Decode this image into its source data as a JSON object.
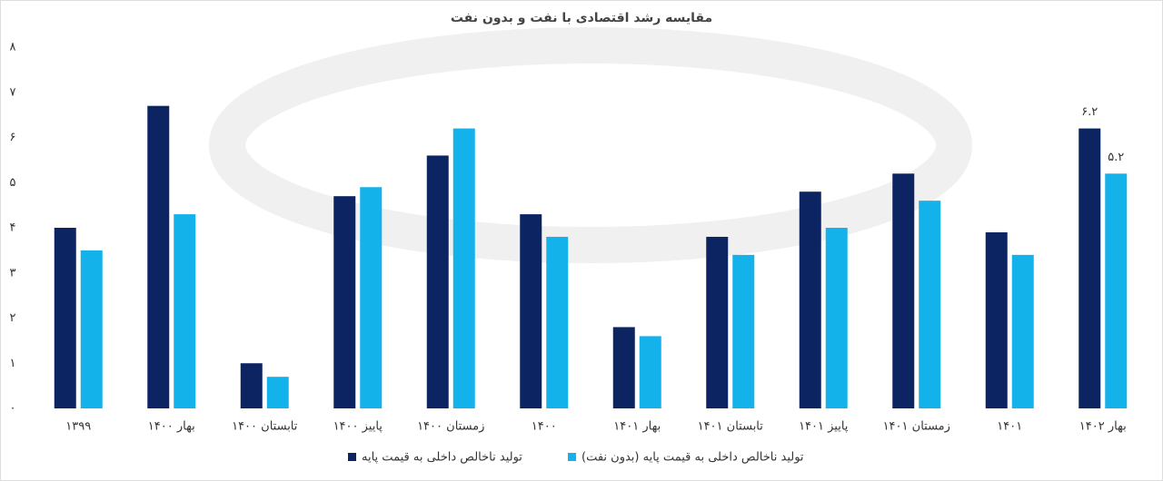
{
  "chart_data": {
    "type": "bar",
    "title": "مقایسه رشد اقتصادی با نفت و بدون نفت",
    "categories": [
      "۱۳۹۹",
      "بهار ۱۴۰۰",
      "تابستان ۱۴۰۰",
      "پاییز ۱۴۰۰",
      "زمستان ۱۴۰۰",
      "۱۴۰۰",
      "بهار ۱۴۰۱",
      "تابستان ۱۴۰۱",
      "پاییز ۱۴۰۱",
      "زمستان ۱۴۰۱",
      "۱۴۰۱",
      "بهار ۱۴۰۲"
    ],
    "series": [
      {
        "name": "تولید ناخالص داخلی به قیمت پایه",
        "color": "#0d2463",
        "values": [
          4.0,
          6.7,
          1.0,
          4.7,
          5.6,
          4.3,
          1.8,
          3.8,
          4.8,
          5.2,
          3.9,
          6.2
        ],
        "value_labels": [
          null,
          null,
          null,
          null,
          null,
          null,
          null,
          null,
          null,
          null,
          null,
          "۶.۲"
        ]
      },
      {
        "name": "تولید ناخالص داخلی به قیمت پایه (بدون نفت)",
        "color": "#14b2ea",
        "values": [
          3.5,
          4.3,
          0.7,
          4.9,
          6.2,
          3.8,
          1.6,
          3.4,
          4.0,
          4.6,
          3.4,
          5.2
        ],
        "value_labels": [
          null,
          null,
          null,
          null,
          null,
          null,
          null,
          null,
          null,
          null,
          null,
          "۵.۲"
        ]
      }
    ],
    "ylim": [
      0,
      8
    ],
    "yticks": [
      {
        "value": 0,
        "label": "۰"
      },
      {
        "value": 1,
        "label": "۱"
      },
      {
        "value": 2,
        "label": "۲"
      },
      {
        "value": 3,
        "label": "۳"
      },
      {
        "value": 4,
        "label": "۴"
      },
      {
        "value": 5,
        "label": "۵"
      },
      {
        "value": 6,
        "label": "۶"
      },
      {
        "value": 7,
        "label": "۷"
      },
      {
        "value": 8,
        "label": "۸"
      }
    ],
    "grid": false
  }
}
